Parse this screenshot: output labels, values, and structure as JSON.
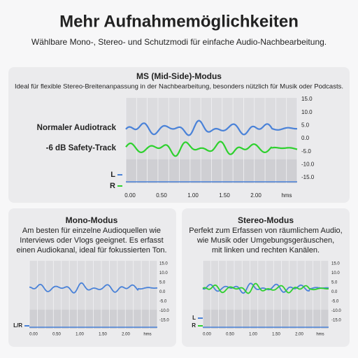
{
  "header": {
    "title": "Mehr Aufnahmemöglichkeiten",
    "subtitle": "Wählbare Mono-, Stereo- und Schutzmodi für einfache Audio-Nachbearbeitung."
  },
  "panels": [
    {
      "title": "MS (Mid-Side)-Modus",
      "description": [
        "Ideal für flexible Stereo-Breitenanpassung in der Nachbearbeitung, besonders nützlich für Musik oder Podcasts."
      ],
      "legend": [
        "Normaler Audiotrack",
        "-6 dB Safety-Track"
      ],
      "channels": [
        "L",
        "R"
      ],
      "yticks": [
        "15.0",
        "10.0",
        "5.0",
        "0.0",
        "-5.0",
        "-10.0",
        "-15.0"
      ],
      "xticks": [
        "0.00",
        "0.50",
        "1.00",
        "1.50",
        "2.00"
      ],
      "x_unit": "hms"
    },
    {
      "title": "Mono-Modus",
      "description": [
        "Am besten für einzelne Audioquellen wie",
        "Interviews oder Vlogs geeignet. Es erfasst",
        "einen Audiokanal, ideal für fokussierten Ton."
      ],
      "channels": [
        "L/R"
      ],
      "yticks": [
        "15.0",
        "10.0",
        "5.0",
        "0.0",
        "-5.0",
        "-10.0",
        "-15.0"
      ],
      "xticks": [
        "0.00",
        "0.50",
        "1.00",
        "1.50",
        "2.00"
      ],
      "x_unit": "hms"
    },
    {
      "title": "Stereo-Modus",
      "description": [
        "Perfekt zum Erfassen von räumlichem Audio,",
        "wie Musik oder Umgebungsgeräuschen,",
        "mit linken und rechten Kanälen."
      ],
      "channels": [
        "L",
        "R"
      ],
      "yticks": [
        "15.0",
        "10.0",
        "5.0",
        "0.0",
        "-5.0",
        "-10.0",
        "-15.0"
      ],
      "xticks": [
        "0.00",
        "0.50",
        "1.00",
        "1.50",
        "2.00"
      ],
      "x_unit": "hms"
    }
  ]
}
